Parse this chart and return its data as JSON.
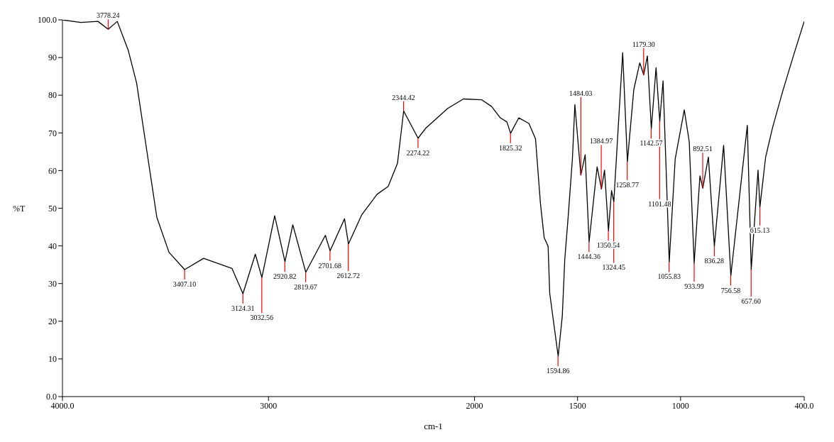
{
  "chart_data": {
    "type": "line",
    "xlabel": "cm-1",
    "ylabel": "%T",
    "xlim": [
      4000,
      400
    ],
    "ylim": [
      0,
      100
    ],
    "xticks": [
      {
        "value": 4000,
        "label": "4000.0"
      },
      3000,
      2000,
      1500,
      1000,
      {
        "value": 400,
        "label": "400.0"
      }
    ],
    "yticks": [
      {
        "value": 0,
        "label": "0.0"
      },
      10,
      20,
      30,
      40,
      50,
      60,
      70,
      80,
      90,
      {
        "value": 100,
        "label": "100.0"
      }
    ],
    "grid": false,
    "legend": false,
    "marker": "none",
    "line_style": "solid",
    "series": [
      {
        "color": "#000000",
        "x": [
          4000,
          3911,
          3828,
          3778,
          3734,
          3680,
          3640,
          3591,
          3542,
          3483,
          3407,
          3315,
          3177,
          3124,
          3064,
          3032,
          2970,
          2920,
          2882,
          2819,
          2724,
          2701,
          2631,
          2612,
          2547,
          2473,
          2419,
          2374,
          2344,
          2274,
          2236,
          2130,
          2054,
          1966,
          1917,
          1875,
          1843,
          1825,
          1785,
          1736,
          1704,
          1680,
          1662,
          1643,
          1635,
          1594,
          1574,
          1562,
          1545,
          1525,
          1513,
          1484,
          1463,
          1444,
          1405,
          1384,
          1369,
          1350,
          1335,
          1324,
          1281,
          1258,
          1227,
          1198,
          1179,
          1161,
          1142,
          1119,
          1101,
          1085,
          1068,
          1055,
          1026,
          982,
          958,
          934,
          906,
          892,
          865,
          836,
          791,
          756,
          676,
          657,
          624,
          615,
          587,
          554,
          505,
          456,
          400
        ],
        "values": [
          100.0,
          99.3,
          99.6,
          97.5,
          99.6,
          91.8,
          83.2,
          65.4,
          47.6,
          38.3,
          33.7,
          36.7,
          34.0,
          27.3,
          37.8,
          31.6,
          48.0,
          35.8,
          45.6,
          33.0,
          42.8,
          38.7,
          47.2,
          40.5,
          48.3,
          53.7,
          55.8,
          61.9,
          75.8,
          68.6,
          71.3,
          76.5,
          79.0,
          78.8,
          77.0,
          74.0,
          72.9,
          69.9,
          74.0,
          72.5,
          68.4,
          51.2,
          42.2,
          39.9,
          27.4,
          10.7,
          21.4,
          36.4,
          48.1,
          63.1,
          77.5,
          58.8,
          64.2,
          41.0,
          61.0,
          55.1,
          60.1,
          44.0,
          54.7,
          51.7,
          91.3,
          62.4,
          81.5,
          88.6,
          85.4,
          90.4,
          71.1,
          87.3,
          73.1,
          83.8,
          57.0,
          35.7,
          63.1,
          76.1,
          67.7,
          35.4,
          58.6,
          55.3,
          63.6,
          39.9,
          66.7,
          32.1,
          72.0,
          33.7,
          60.1,
          50.3,
          63.6,
          71.3,
          80.9,
          89.8,
          99.6
        ]
      }
    ],
    "annotations": [
      {
        "text": "3778.24",
        "x": 3778.24,
        "y": 97.5
      },
      {
        "text": "3407.10",
        "x": 3407.1,
        "y": 33.7
      },
      {
        "text": "3124.31",
        "x": 3124.31,
        "y": 27.3
      },
      {
        "text": "3032.56",
        "x": 3032.56,
        "y": 31.6
      },
      {
        "text": "2920.82",
        "x": 2920.82,
        "y": 35.8
      },
      {
        "text": "2819.67",
        "x": 2819.67,
        "y": 33.0
      },
      {
        "text": "2701.68",
        "x": 2701.68,
        "y": 38.7
      },
      {
        "text": "2612.72",
        "x": 2612.72,
        "y": 40.5
      },
      {
        "text": "2344.42",
        "x": 2344.42,
        "y": 75.8
      },
      {
        "text": "2274.22",
        "x": 2274.22,
        "y": 68.6
      },
      {
        "text": "1825.32",
        "x": 1825.32,
        "y": 69.9
      },
      {
        "text": "1594.86",
        "x": 1594.86,
        "y": 10.7
      },
      {
        "text": "1484.03",
        "x": 1484.03,
        "y": 58.8
      },
      {
        "text": "1444.36",
        "x": 1444.36,
        "y": 41.0
      },
      {
        "text": "1384.97",
        "x": 1384.97,
        "y": 55.1
      },
      {
        "text": "1350.54",
        "x": 1350.54,
        "y": 44.0
      },
      {
        "text": "1324.45",
        "x": 1324.45,
        "y": 51.7
      },
      {
        "text": "1258.77",
        "x": 1258.77,
        "y": 62.4
      },
      {
        "text": "1179.30",
        "x": 1179.3,
        "y": 85.4
      },
      {
        "text": "1142.57",
        "x": 1142.57,
        "y": 71.1
      },
      {
        "text": "1101.48",
        "x": 1101.48,
        "y": 73.1
      },
      {
        "text": "1055.83",
        "x": 1055.83,
        "y": 35.7
      },
      {
        "text": "933.99",
        "x": 933.99,
        "y": 35.4
      },
      {
        "text": "892.51",
        "x": 892.51,
        "y": 55.3
      },
      {
        "text": "836.28",
        "x": 836.28,
        "y": 39.9
      },
      {
        "text": "756.58",
        "x": 756.58,
        "y": 32.1
      },
      {
        "text": "657.60",
        "x": 657.6,
        "y": 33.7
      },
      {
        "text": "615.13",
        "x": 615.13,
        "y": 50.3
      }
    ]
  }
}
